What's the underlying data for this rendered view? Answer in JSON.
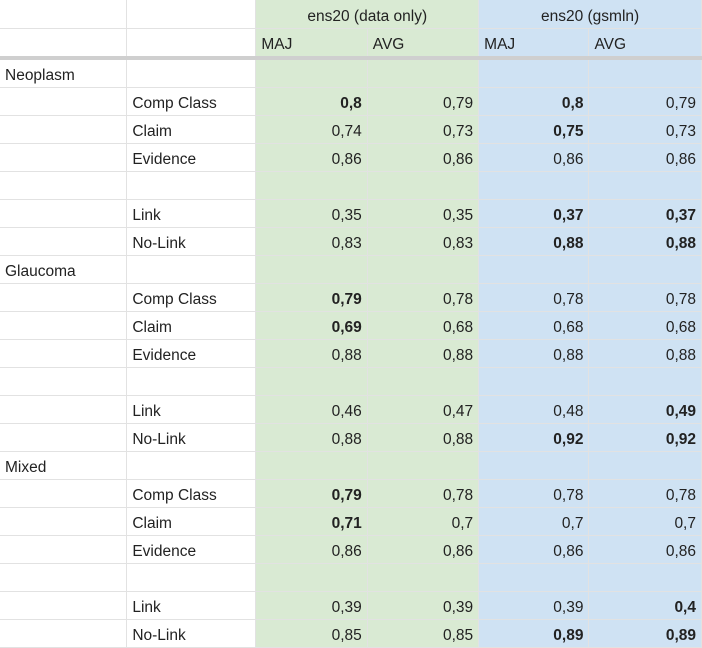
{
  "header": {
    "group1_title": "ens20 (data only)",
    "group2_title": "ens20 (gsmln)",
    "sub_labels": [
      "MAJ",
      "AVG",
      "MAJ",
      "AVG"
    ]
  },
  "colors": {
    "group1_bg": "#d9ead3",
    "group2_bg": "#cfe2f3"
  },
  "rows": [
    {
      "section": "Neoplasm",
      "label": "",
      "values": [
        "",
        "",
        "",
        ""
      ],
      "bold": [
        false,
        false,
        false,
        false
      ]
    },
    {
      "section": "",
      "label": "Comp Class",
      "values": [
        "0,8",
        "0,79",
        "0,8",
        "0,79"
      ],
      "bold": [
        true,
        false,
        true,
        false
      ]
    },
    {
      "section": "",
      "label": "Claim",
      "values": [
        "0,74",
        "0,73",
        "0,75",
        "0,73"
      ],
      "bold": [
        false,
        false,
        true,
        false
      ]
    },
    {
      "section": "",
      "label": "Evidence",
      "values": [
        "0,86",
        "0,86",
        "0,86",
        "0,86"
      ],
      "bold": [
        false,
        false,
        false,
        false
      ]
    },
    {
      "section": "",
      "label": "",
      "values": [
        "",
        "",
        "",
        ""
      ],
      "bold": [
        false,
        false,
        false,
        false
      ]
    },
    {
      "section": "",
      "label": "Link",
      "values": [
        "0,35",
        "0,35",
        "0,37",
        "0,37"
      ],
      "bold": [
        false,
        false,
        true,
        true
      ]
    },
    {
      "section": "",
      "label": "No-Link",
      "values": [
        "0,83",
        "0,83",
        "0,88",
        "0,88"
      ],
      "bold": [
        false,
        false,
        true,
        true
      ]
    },
    {
      "section": "Glaucoma",
      "label": "",
      "values": [
        "",
        "",
        "",
        ""
      ],
      "bold": [
        false,
        false,
        false,
        false
      ]
    },
    {
      "section": "",
      "label": "Comp Class",
      "values": [
        "0,79",
        "0,78",
        "0,78",
        "0,78"
      ],
      "bold": [
        true,
        false,
        false,
        false
      ]
    },
    {
      "section": "",
      "label": "Claim",
      "values": [
        "0,69",
        "0,68",
        "0,68",
        "0,68"
      ],
      "bold": [
        true,
        false,
        false,
        false
      ]
    },
    {
      "section": "",
      "label": "Evidence",
      "values": [
        "0,88",
        "0,88",
        "0,88",
        "0,88"
      ],
      "bold": [
        false,
        false,
        false,
        false
      ]
    },
    {
      "section": "",
      "label": "",
      "values": [
        "",
        "",
        "",
        ""
      ],
      "bold": [
        false,
        false,
        false,
        false
      ]
    },
    {
      "section": "",
      "label": "Link",
      "values": [
        "0,46",
        "0,47",
        "0,48",
        "0,49"
      ],
      "bold": [
        false,
        false,
        false,
        true
      ]
    },
    {
      "section": "",
      "label": "No-Link",
      "values": [
        "0,88",
        "0,88",
        "0,92",
        "0,92"
      ],
      "bold": [
        false,
        false,
        true,
        true
      ]
    },
    {
      "section": "Mixed",
      "label": "",
      "values": [
        "",
        "",
        "",
        ""
      ],
      "bold": [
        false,
        false,
        false,
        false
      ]
    },
    {
      "section": "",
      "label": "Comp Class",
      "values": [
        "0,79",
        "0,78",
        "0,78",
        "0,78"
      ],
      "bold": [
        true,
        false,
        false,
        false
      ]
    },
    {
      "section": "",
      "label": "Claim",
      "values": [
        "0,71",
        "0,7",
        "0,7",
        "0,7"
      ],
      "bold": [
        true,
        false,
        false,
        false
      ]
    },
    {
      "section": "",
      "label": "Evidence",
      "values": [
        "0,86",
        "0,86",
        "0,86",
        "0,86"
      ],
      "bold": [
        false,
        false,
        false,
        false
      ]
    },
    {
      "section": "",
      "label": "",
      "values": [
        "",
        "",
        "",
        ""
      ],
      "bold": [
        false,
        false,
        false,
        false
      ]
    },
    {
      "section": "",
      "label": "Link",
      "values": [
        "0,39",
        "0,39",
        "0,39",
        "0,4"
      ],
      "bold": [
        false,
        false,
        false,
        true
      ]
    },
    {
      "section": "",
      "label": "No-Link",
      "values": [
        "0,85",
        "0,85",
        "0,89",
        "0,89"
      ],
      "bold": [
        false,
        false,
        true,
        true
      ]
    }
  ]
}
